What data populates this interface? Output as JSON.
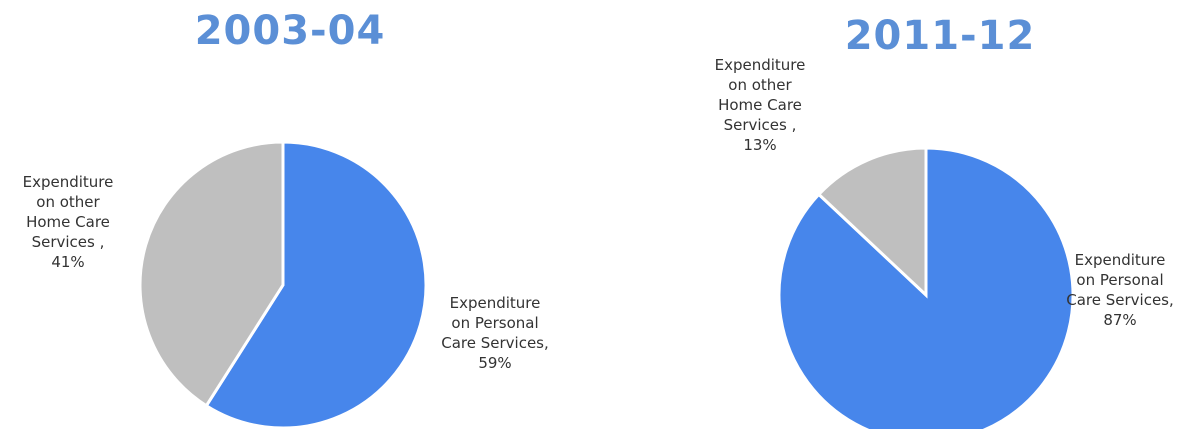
{
  "chart_data": [
    {
      "type": "pie",
      "title": "2003-04",
      "categories": [
        "Expenditure on Personal Care Services,",
        "Expenditure on other Home Care Services ,"
      ],
      "values": [
        59,
        41
      ],
      "value_labels": [
        "59%",
        "41%"
      ],
      "colors": [
        "#4786eb",
        "#bfbfbf"
      ]
    },
    {
      "type": "pie",
      "title": "2011-12",
      "categories": [
        "Expenditure on Personal Care Services,",
        "Expenditure on other Home Care Services ,"
      ],
      "values": [
        87,
        13
      ],
      "value_labels": [
        "87%",
        "13%"
      ],
      "colors": [
        "#4786eb",
        "#bfbfbf"
      ]
    }
  ]
}
